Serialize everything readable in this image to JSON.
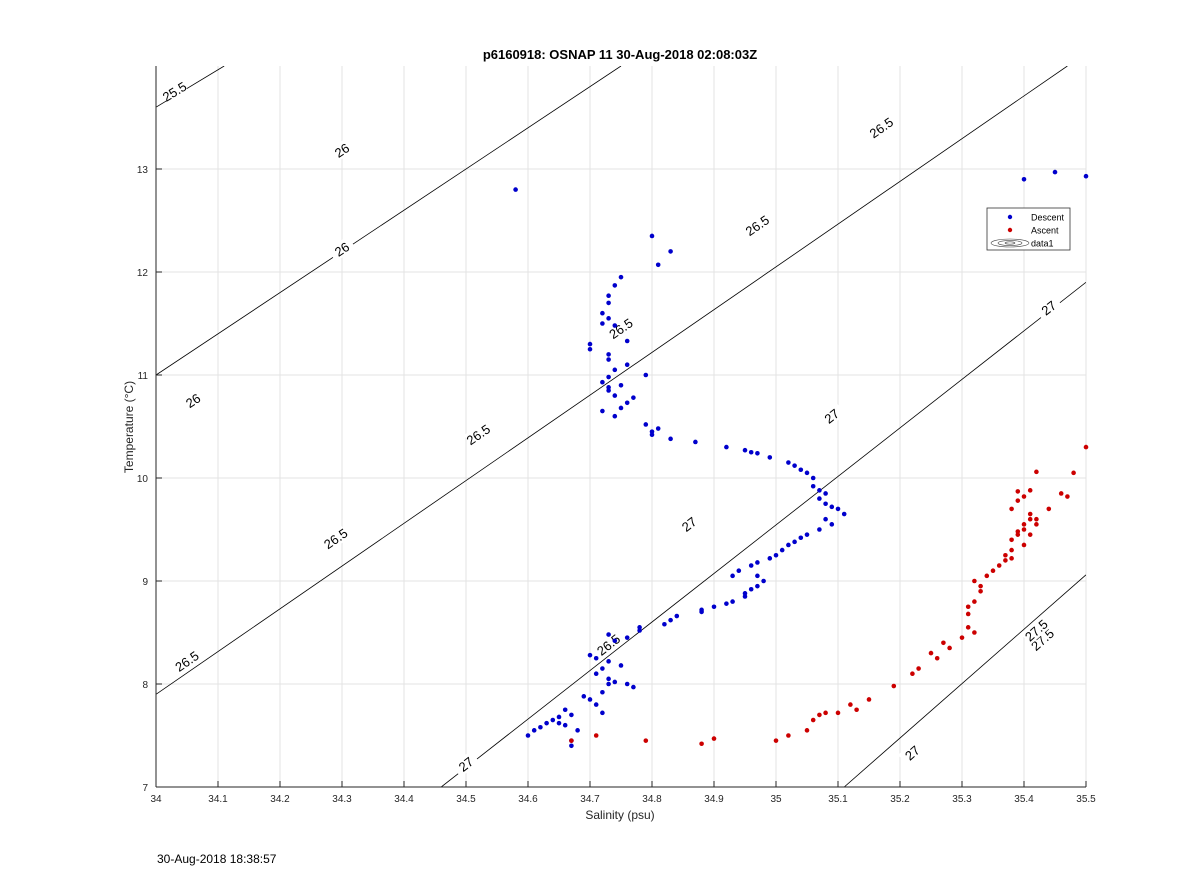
{
  "timestamp": "30-Aug-2018 18:38:57",
  "chart_data": {
    "type": "scatter",
    "title": "p6160918: OSNAP 11 30-Aug-2018 02:08:03Z",
    "xlabel": "Salinity (psu)",
    "ylabel": "Temperature (°C)",
    "xlim": [
      34,
      35.5
    ],
    "ylim": [
      7,
      14
    ],
    "xticks": [
      "34",
      "34.1",
      "34.2",
      "34.3",
      "34.4",
      "34.5",
      "34.6",
      "34.7",
      "34.8",
      "34.9",
      "35",
      "35.1",
      "35.2",
      "35.3",
      "35.4",
      "35.5"
    ],
    "yticks": [
      "7",
      "8",
      "9",
      "10",
      "11",
      "12",
      "13"
    ],
    "grid": true,
    "legend_position": "top-right",
    "legend": [
      "Descent",
      "Ascent",
      "data1"
    ],
    "colors": {
      "descent": "#0000cc",
      "ascent": "#cc0000",
      "contour": "#000000",
      "grid": "#e3e3e3"
    },
    "series": [
      {
        "name": "Descent",
        "x": [
          34.58,
          34.8,
          34.83,
          34.81,
          34.75,
          34.74,
          34.73,
          34.73,
          34.72,
          34.73,
          34.72,
          34.74,
          34.76,
          34.7,
          34.7,
          34.73,
          34.76,
          34.73,
          34.74,
          34.73,
          34.72,
          34.75,
          34.73,
          34.73,
          34.74,
          34.79,
          34.77,
          34.76,
          34.75,
          34.72,
          34.74,
          34.79,
          34.81,
          34.8,
          34.8,
          34.83,
          34.87,
          34.92,
          34.95,
          34.96,
          34.97,
          34.99,
          35.02,
          35.03,
          35.04,
          35.05,
          35.06,
          35.06,
          35.07,
          35.08,
          35.07,
          35.08,
          35.09,
          35.1,
          35.11,
          35.08,
          35.09,
          35.07,
          35.05,
          35.04,
          35.03,
          35.02,
          35.01,
          35.0,
          34.99,
          34.97,
          34.96,
          34.94,
          34.93,
          34.97,
          34.98,
          34.97,
          34.96,
          34.95,
          34.95,
          34.93,
          34.92,
          34.9,
          34.88,
          34.88,
          34.84,
          34.83,
          34.82,
          34.78,
          34.78,
          34.76,
          34.73,
          34.74,
          34.7,
          34.71,
          34.73,
          34.75,
          34.72,
          34.71,
          34.73,
          34.74,
          34.73,
          34.76,
          34.77,
          34.72,
          34.69,
          34.7,
          34.71,
          34.66,
          34.67,
          34.65,
          34.64,
          34.63,
          34.62,
          34.61,
          34.6,
          34.67,
          34.67,
          34.68,
          34.65,
          34.66,
          34.72,
          35.4,
          35.45,
          35.5
        ],
        "y": [
          12.8,
          12.35,
          12.2,
          12.07,
          11.95,
          11.87,
          11.77,
          11.7,
          11.6,
          11.55,
          11.5,
          11.48,
          11.33,
          11.3,
          11.25,
          11.2,
          11.1,
          11.15,
          11.05,
          10.98,
          10.93,
          10.9,
          10.88,
          10.85,
          10.8,
          11.0,
          10.78,
          10.73,
          10.68,
          10.65,
          10.6,
          10.52,
          10.48,
          10.45,
          10.42,
          10.38,
          10.35,
          10.3,
          10.27,
          10.25,
          10.24,
          10.2,
          10.15,
          10.12,
          10.08,
          10.05,
          10.0,
          9.92,
          9.88,
          9.85,
          9.8,
          9.75,
          9.72,
          9.7,
          9.65,
          9.6,
          9.55,
          9.5,
          9.45,
          9.42,
          9.38,
          9.35,
          9.3,
          9.25,
          9.22,
          9.18,
          9.15,
          9.1,
          9.05,
          9.05,
          9.0,
          8.95,
          8.92,
          8.88,
          8.85,
          8.8,
          8.78,
          8.75,
          8.72,
          8.7,
          8.66,
          8.62,
          8.58,
          8.55,
          8.52,
          8.45,
          8.48,
          8.42,
          8.28,
          8.25,
          8.22,
          8.18,
          8.15,
          8.1,
          8.05,
          8.02,
          8.0,
          8.0,
          7.97,
          7.92,
          7.88,
          7.85,
          7.8,
          7.75,
          7.7,
          7.68,
          7.65,
          7.62,
          7.58,
          7.55,
          7.5,
          7.45,
          7.4,
          7.55,
          7.62,
          7.6,
          7.72,
          12.9,
          12.97,
          12.93
        ]
      },
      {
        "name": "Ascent",
        "x": [
          34.67,
          34.71,
          34.79,
          34.88,
          34.9,
          35.0,
          35.02,
          35.05,
          35.06,
          35.07,
          35.08,
          35.1,
          35.12,
          35.13,
          35.15,
          35.19,
          35.22,
          35.23,
          35.25,
          35.26,
          35.27,
          35.28,
          35.3,
          35.31,
          35.32,
          35.31,
          35.32,
          35.33,
          35.32,
          35.31,
          35.33,
          35.34,
          35.35,
          35.36,
          35.37,
          35.37,
          35.38,
          35.38,
          35.39,
          35.4,
          35.4,
          35.41,
          35.41,
          35.42,
          35.42,
          35.39,
          35.4,
          35.38,
          35.41,
          35.38,
          35.39,
          35.4,
          35.41,
          35.42,
          35.44,
          35.46,
          35.47,
          35.48,
          35.5,
          35.39
        ],
        "y": [
          7.45,
          7.5,
          7.45,
          7.42,
          7.47,
          7.45,
          7.5,
          7.55,
          7.65,
          7.7,
          7.72,
          7.72,
          7.8,
          7.75,
          7.85,
          7.98,
          8.1,
          8.15,
          8.3,
          8.25,
          8.4,
          8.35,
          8.45,
          8.55,
          8.5,
          8.75,
          8.8,
          8.9,
          9.0,
          8.68,
          8.95,
          9.05,
          9.1,
          9.15,
          9.2,
          9.25,
          9.3,
          9.4,
          9.45,
          9.5,
          9.55,
          9.6,
          9.65,
          9.55,
          9.6,
          9.48,
          9.35,
          9.22,
          9.45,
          9.7,
          9.78,
          9.82,
          9.88,
          10.06,
          9.7,
          9.85,
          9.82,
          10.05,
          10.3,
          9.87
        ]
      }
    ],
    "contour_labels": [
      "25.5",
      "26",
      "26",
      "26",
      "26.5",
      "26.5",
      "26.5",
      "26.5",
      "26.5",
      "26.5",
      "26.5",
      "27",
      "27",
      "27",
      "27",
      "27",
      "27.5",
      "27.5"
    ]
  }
}
